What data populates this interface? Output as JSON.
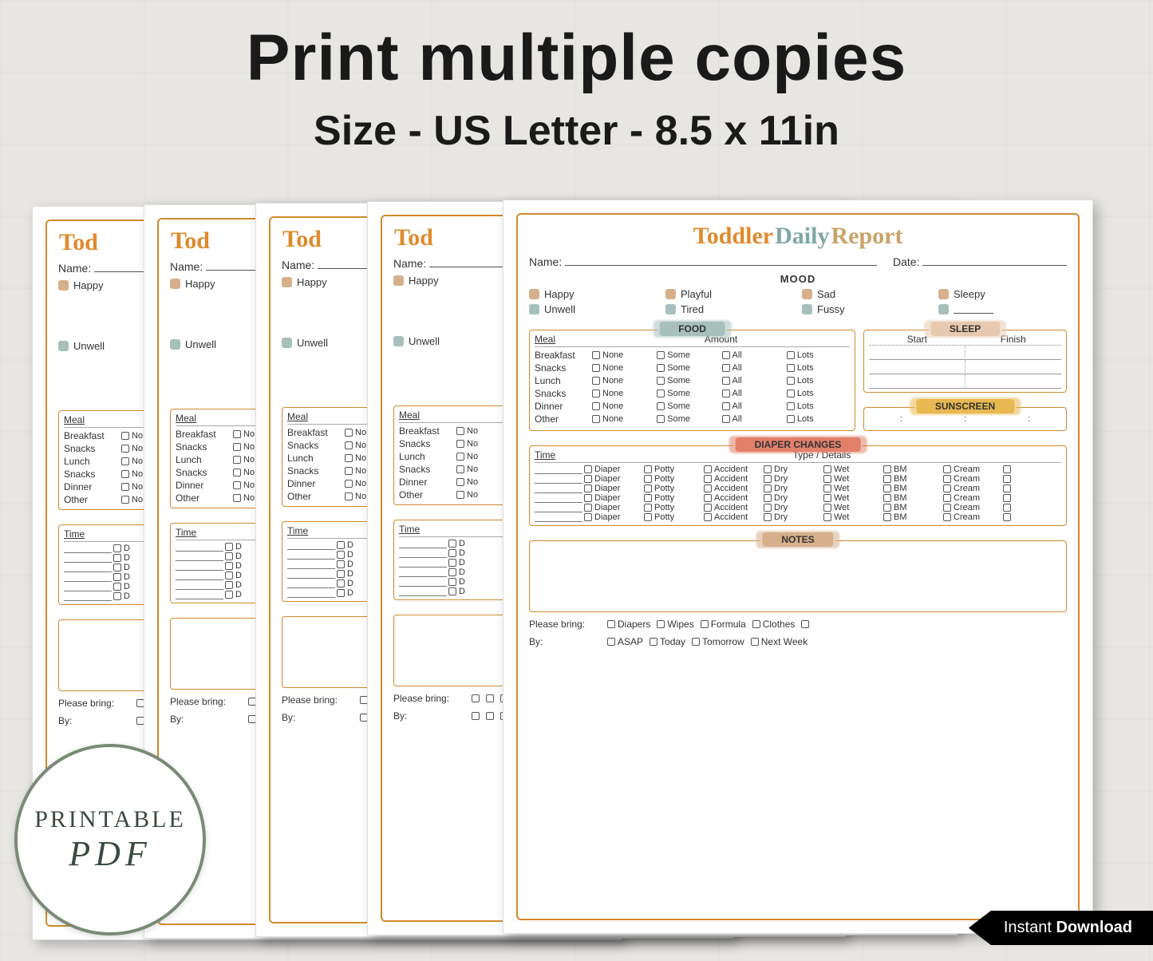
{
  "headline": {
    "line1": "Print multiple copies",
    "line2": "Size - US Letter - 8.5 x 11in"
  },
  "badge": {
    "line1": "PRINTABLE",
    "line2": "PDF"
  },
  "ribbon": {
    "prefix": "Instant ",
    "bold": "Download"
  },
  "page_border_color": "#d08a2c",
  "title": {
    "words": [
      {
        "text": "Toddler",
        "color": "#e08a2c"
      },
      {
        "text": "Daily",
        "color": "#7fa8a4"
      },
      {
        "text": "Report",
        "color": "#c9a36a"
      }
    ]
  },
  "fields": {
    "name_label": "Name:",
    "date_label": "Date:"
  },
  "mood": {
    "heading": "MOOD",
    "items": [
      {
        "label": "Happy",
        "color": "#d6b08c"
      },
      {
        "label": "Playful",
        "color": "#d6b08c"
      },
      {
        "label": "Sad",
        "color": "#d6b08c"
      },
      {
        "label": "Sleepy",
        "color": "#d6b08c"
      },
      {
        "label": "Unwell",
        "color": "#a7c0bc"
      },
      {
        "label": "Tired",
        "color": "#a7c0bc"
      },
      {
        "label": "Fussy",
        "color": "#a7c0bc"
      },
      {
        "label": "",
        "color": "#a7c0bc",
        "blank": true
      }
    ]
  },
  "food": {
    "heading": "FOOD",
    "heading_bg": "#a7c0bc",
    "col_meal": "Meal",
    "col_amount": "Amount",
    "meals": [
      "Breakfast",
      "Snacks",
      "Lunch",
      "Snacks",
      "Dinner",
      "Other"
    ],
    "amounts": [
      "None",
      "Some",
      "All",
      "Lots"
    ]
  },
  "sleep": {
    "heading": "SLEEP",
    "heading_bg": "#e7c9b0",
    "col_start": "Start",
    "col_finish": "Finish",
    "rows": 3
  },
  "sunscreen": {
    "heading": "SUNSCREEN",
    "heading_bg": "#e8b951"
  },
  "diaper": {
    "heading": "DIAPER CHANGES",
    "heading_bg": "#e2806a",
    "col_time": "Time",
    "col_type": "Type / Details",
    "options": [
      "Diaper",
      "Potty",
      "Accident",
      "Dry",
      "Wet",
      "BM",
      "Cream",
      ""
    ],
    "rows": 6
  },
  "notes": {
    "heading": "NOTES",
    "heading_bg": "#d6b08c"
  },
  "bring": {
    "label": "Please bring:",
    "options": [
      "Diapers",
      "Wipes",
      "Formula",
      "Clothes",
      ""
    ],
    "by_label": "By:",
    "by_options": [
      "ASAP",
      "Today",
      "Tomorrow",
      "Next Week"
    ]
  },
  "partial_amount_label": "No"
}
